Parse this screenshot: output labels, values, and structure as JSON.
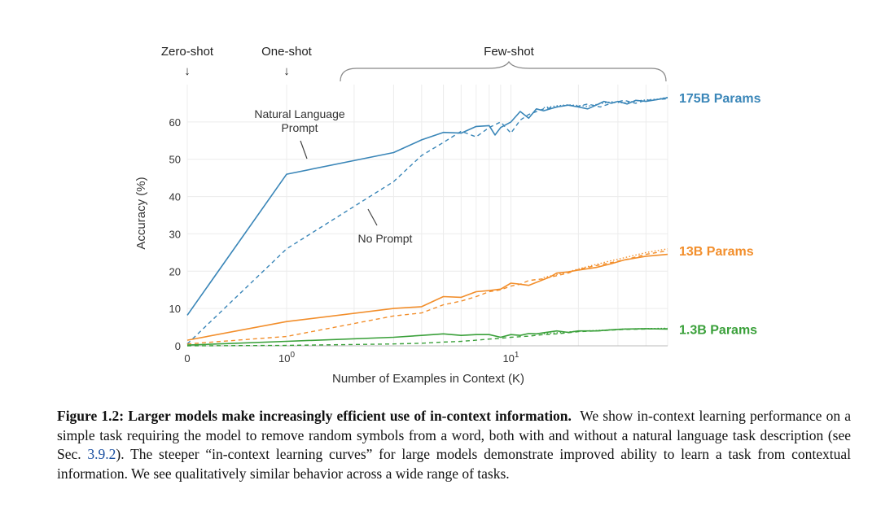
{
  "chart_data": {
    "type": "line",
    "xlabel": "Number of Examples in Context  (K)",
    "ylabel": "Accuracy (%)",
    "xscale": "symlog",
    "xlim": [
      0,
      50
    ],
    "ylim": [
      0,
      70
    ],
    "x_ticks": [
      {
        "value": 0,
        "label": "0"
      },
      {
        "value": 1,
        "label": "10",
        "exponent": "0"
      },
      {
        "value": 10,
        "label": "10",
        "exponent": "1"
      }
    ],
    "y_ticks": [
      0,
      10,
      20,
      30,
      40,
      50,
      60
    ],
    "grid": true,
    "top_labels": {
      "zero_shot": "Zero-shot",
      "one_shot": "One-shot",
      "few_shot": "Few-shot"
    },
    "annotations": {
      "natural_language": [
        "Natural Language",
        "Prompt"
      ],
      "no_prompt": "No Prompt"
    },
    "series": [
      {
        "name": "175B Params",
        "color": "#3a86b8",
        "style": "solid",
        "points": [
          [
            0,
            8.2
          ],
          [
            1,
            46
          ],
          [
            3,
            51.8
          ],
          [
            4,
            55.2
          ],
          [
            5,
            57.2
          ],
          [
            6,
            57
          ],
          [
            7,
            58.8
          ],
          [
            8,
            59
          ],
          [
            8.5,
            56.5
          ],
          [
            9,
            58.5
          ],
          [
            10,
            60
          ],
          [
            11,
            62.8
          ],
          [
            12,
            61
          ],
          [
            13,
            63.5
          ],
          [
            14,
            63
          ],
          [
            16,
            64
          ],
          [
            18,
            64.5
          ],
          [
            20,
            64
          ],
          [
            22,
            63.5
          ],
          [
            24,
            64.5
          ],
          [
            26,
            65.5
          ],
          [
            28,
            65
          ],
          [
            30,
            65.5
          ],
          [
            33,
            64.8
          ],
          [
            36,
            65.8
          ],
          [
            40,
            65.5
          ],
          [
            45,
            66
          ],
          [
            50,
            66.5
          ]
        ]
      },
      {
        "name": "175B Params",
        "color": "#3a86b8",
        "style": "dashed",
        "points": [
          [
            0,
            0.5
          ],
          [
            1,
            26
          ],
          [
            3,
            44
          ],
          [
            4,
            51
          ],
          [
            5,
            54.5
          ],
          [
            6,
            57.5
          ],
          [
            7,
            56
          ],
          [
            8,
            58.5
          ],
          [
            9,
            60
          ],
          [
            10,
            57
          ],
          [
            11,
            60.5
          ],
          [
            12,
            62
          ],
          [
            14,
            63.5
          ],
          [
            16,
            64
          ],
          [
            18,
            64.5
          ],
          [
            20,
            64.2
          ],
          [
            22,
            64.8
          ],
          [
            25,
            64
          ],
          [
            28,
            65
          ],
          [
            32,
            65.8
          ],
          [
            36,
            65
          ],
          [
            40,
            65.8
          ],
          [
            45,
            66
          ],
          [
            50,
            66.2
          ]
        ]
      },
      {
        "name": "175B Params",
        "color": "#3a86b8",
        "style": "dotted",
        "points": [
          [
            14,
            63.8
          ],
          [
            16,
            64.3
          ],
          [
            18,
            64.6
          ],
          [
            20,
            64.4
          ],
          [
            22,
            64.2
          ],
          [
            25,
            64.9
          ],
          [
            28,
            65.4
          ],
          [
            32,
            65.1
          ],
          [
            36,
            65.6
          ],
          [
            40,
            65.9
          ],
          [
            45,
            66.1
          ],
          [
            50,
            66.6
          ]
        ]
      },
      {
        "name": "13B Params",
        "color": "#f28e2b",
        "style": "solid",
        "points": [
          [
            0,
            1.5
          ],
          [
            1,
            6.5
          ],
          [
            3,
            10
          ],
          [
            4,
            10.5
          ],
          [
            5,
            13.2
          ],
          [
            6,
            13
          ],
          [
            7,
            14.5
          ],
          [
            8,
            14.8
          ],
          [
            9,
            15.2
          ],
          [
            10,
            16.8
          ],
          [
            11,
            16.5
          ],
          [
            12,
            16.2
          ],
          [
            13,
            17
          ],
          [
            15,
            18.5
          ],
          [
            16,
            19.5
          ],
          [
            18,
            19.8
          ],
          [
            20,
            20.3
          ],
          [
            24,
            21
          ],
          [
            28,
            22
          ],
          [
            32,
            23
          ],
          [
            40,
            24
          ],
          [
            50,
            24.5
          ]
        ]
      },
      {
        "name": "13B Params",
        "color": "#f28e2b",
        "style": "dashed",
        "points": [
          [
            0,
            0.5
          ],
          [
            1,
            2.5
          ],
          [
            3,
            8
          ],
          [
            4,
            8.8
          ],
          [
            5,
            11
          ],
          [
            6,
            12
          ],
          [
            7,
            13.2
          ],
          [
            8,
            14.5
          ],
          [
            9,
            15
          ],
          [
            10,
            16
          ],
          [
            11,
            16.5
          ],
          [
            12,
            17.5
          ],
          [
            14,
            18
          ],
          [
            16,
            18.8
          ],
          [
            18,
            19.5
          ],
          [
            20,
            20.5
          ],
          [
            24,
            21.5
          ],
          [
            28,
            22.3
          ],
          [
            32,
            23
          ],
          [
            40,
            24.5
          ],
          [
            50,
            25.5
          ]
        ]
      },
      {
        "name": "13B Params",
        "color": "#f28e2b",
        "style": "dotted",
        "points": [
          [
            14,
            18.3
          ],
          [
            16,
            19.1
          ],
          [
            18,
            19.8
          ],
          [
            20,
            20.6
          ],
          [
            24,
            21.8
          ],
          [
            28,
            22.8
          ],
          [
            32,
            23.6
          ],
          [
            40,
            25
          ],
          [
            50,
            26
          ]
        ]
      },
      {
        "name": "1.3B Params",
        "color": "#3aa03a",
        "style": "solid",
        "points": [
          [
            0,
            0.2
          ],
          [
            1,
            1.2
          ],
          [
            3,
            2.3
          ],
          [
            4,
            2.8
          ],
          [
            5,
            3.2
          ],
          [
            6,
            2.8
          ],
          [
            7,
            3
          ],
          [
            8,
            3
          ],
          [
            9,
            2.3
          ],
          [
            10,
            3
          ],
          [
            11,
            2.8
          ],
          [
            12,
            3.3
          ],
          [
            13,
            3.2
          ],
          [
            14,
            3.5
          ],
          [
            16,
            4
          ],
          [
            18,
            3.6
          ],
          [
            20,
            4
          ],
          [
            24,
            4
          ],
          [
            28,
            4.3
          ],
          [
            32,
            4.5
          ],
          [
            40,
            4.6
          ],
          [
            50,
            4.5
          ]
        ]
      },
      {
        "name": "1.3B Params",
        "color": "#3aa03a",
        "style": "dashed",
        "points": [
          [
            0,
            0
          ],
          [
            1,
            0.1
          ],
          [
            3,
            0.5
          ],
          [
            4,
            0.7
          ],
          [
            5,
            1
          ],
          [
            6,
            1.2
          ],
          [
            7,
            1.5
          ],
          [
            8,
            1.8
          ],
          [
            9,
            2
          ],
          [
            10,
            2.3
          ],
          [
            12,
            2.6
          ],
          [
            14,
            3
          ],
          [
            16,
            3.2
          ],
          [
            18,
            3.5
          ],
          [
            20,
            3.8
          ],
          [
            24,
            4
          ],
          [
            28,
            4.2
          ],
          [
            32,
            4.4
          ],
          [
            40,
            4.5
          ],
          [
            50,
            4.6
          ]
        ]
      },
      {
        "name": "1.3B Params",
        "color": "#3aa03a",
        "style": "dotted",
        "points": [
          [
            14,
            3.2
          ],
          [
            16,
            3.5
          ],
          [
            18,
            3.7
          ],
          [
            20,
            3.9
          ],
          [
            24,
            4.1
          ],
          [
            28,
            4.3
          ],
          [
            32,
            4.5
          ],
          [
            40,
            4.6
          ],
          [
            50,
            4.7
          ]
        ]
      }
    ],
    "series_labels": [
      {
        "text": "175B Params",
        "color": "#3a86b8",
        "y": 66.5
      },
      {
        "text": "13B Params",
        "color": "#f28e2b",
        "y": 25.5
      },
      {
        "text": "1.3B Params",
        "color": "#3aa03a",
        "y": 4.5
      }
    ]
  },
  "caption": {
    "figure_label": "Figure 1.2: Larger models make increasingly efficient use of in-context information.",
    "text_before_ref": "We show in-context learning performance on a simple task requiring the model to remove random symbols from a word, both with and without a natural language task description (see Sec. ",
    "ref": "3.9.2",
    "text_after_ref": "). The steeper “in-context learning curves” for large models demonstrate improved ability to learn a task from contextual information. We see qualitatively similar behavior across a wide range of tasks."
  }
}
